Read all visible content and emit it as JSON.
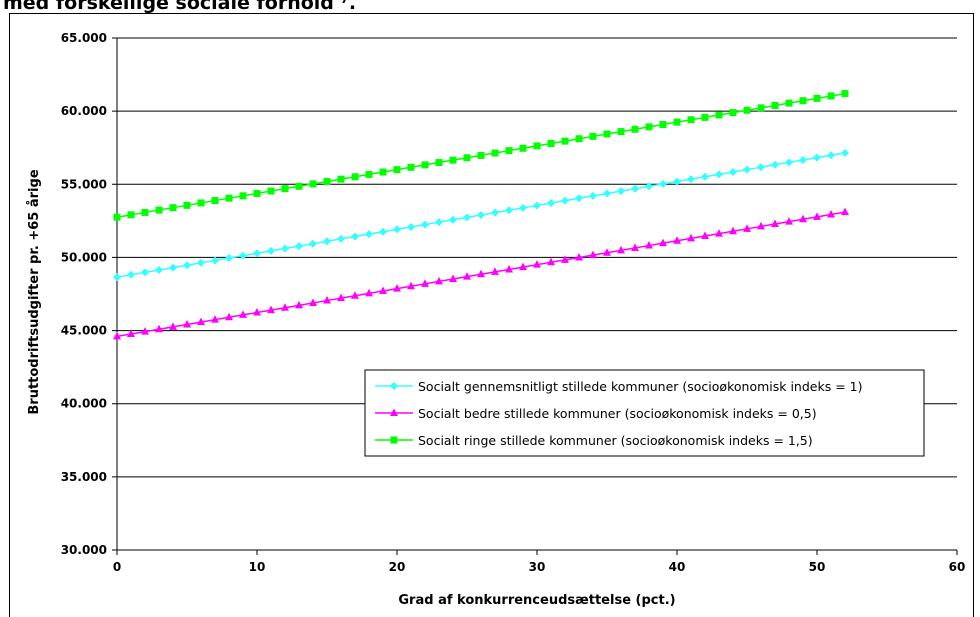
{
  "page": {
    "clipped_title": "med forskellige sociale forhold ⁷."
  },
  "chart_data": {
    "type": "line",
    "xlabel": "Grad af konkurrenceudsættelse (pct.)",
    "ylabel": "Bruttodriftsudgifter pr. +65 årige",
    "xlim": [
      0,
      60
    ],
    "ylim": [
      30000,
      65000
    ],
    "x_ticks": [
      "0",
      "10",
      "20",
      "30",
      "40",
      "50",
      "60"
    ],
    "y_ticks": [
      "30.000",
      "35.000",
      "40.000",
      "45.000",
      "50.000",
      "55.000",
      "60.000",
      "65.000"
    ],
    "grid": "horizontal",
    "legend_position": "center-right",
    "x": {
      "start": 0,
      "end": 52,
      "step": 1
    },
    "series": [
      {
        "name": "Socialt gennemsnitligt stillede kommuner (socioøkonomisk indeks = 1)",
        "start": 48650,
        "end": 57150,
        "color": "#33ffff",
        "marker": "diamond"
      },
      {
        "name": "Socialt bedre stillede kommuner (socioøkonomisk indeks = 0,5)",
        "start": 44600,
        "end": 53100,
        "color": "#ff00ff",
        "marker": "triangle"
      },
      {
        "name": "Socialt ringe stillede kommuner (socioøkonomisk indeks = 1,5)",
        "start": 52750,
        "end": 61200,
        "color": "#00ff00",
        "marker": "square"
      }
    ]
  }
}
